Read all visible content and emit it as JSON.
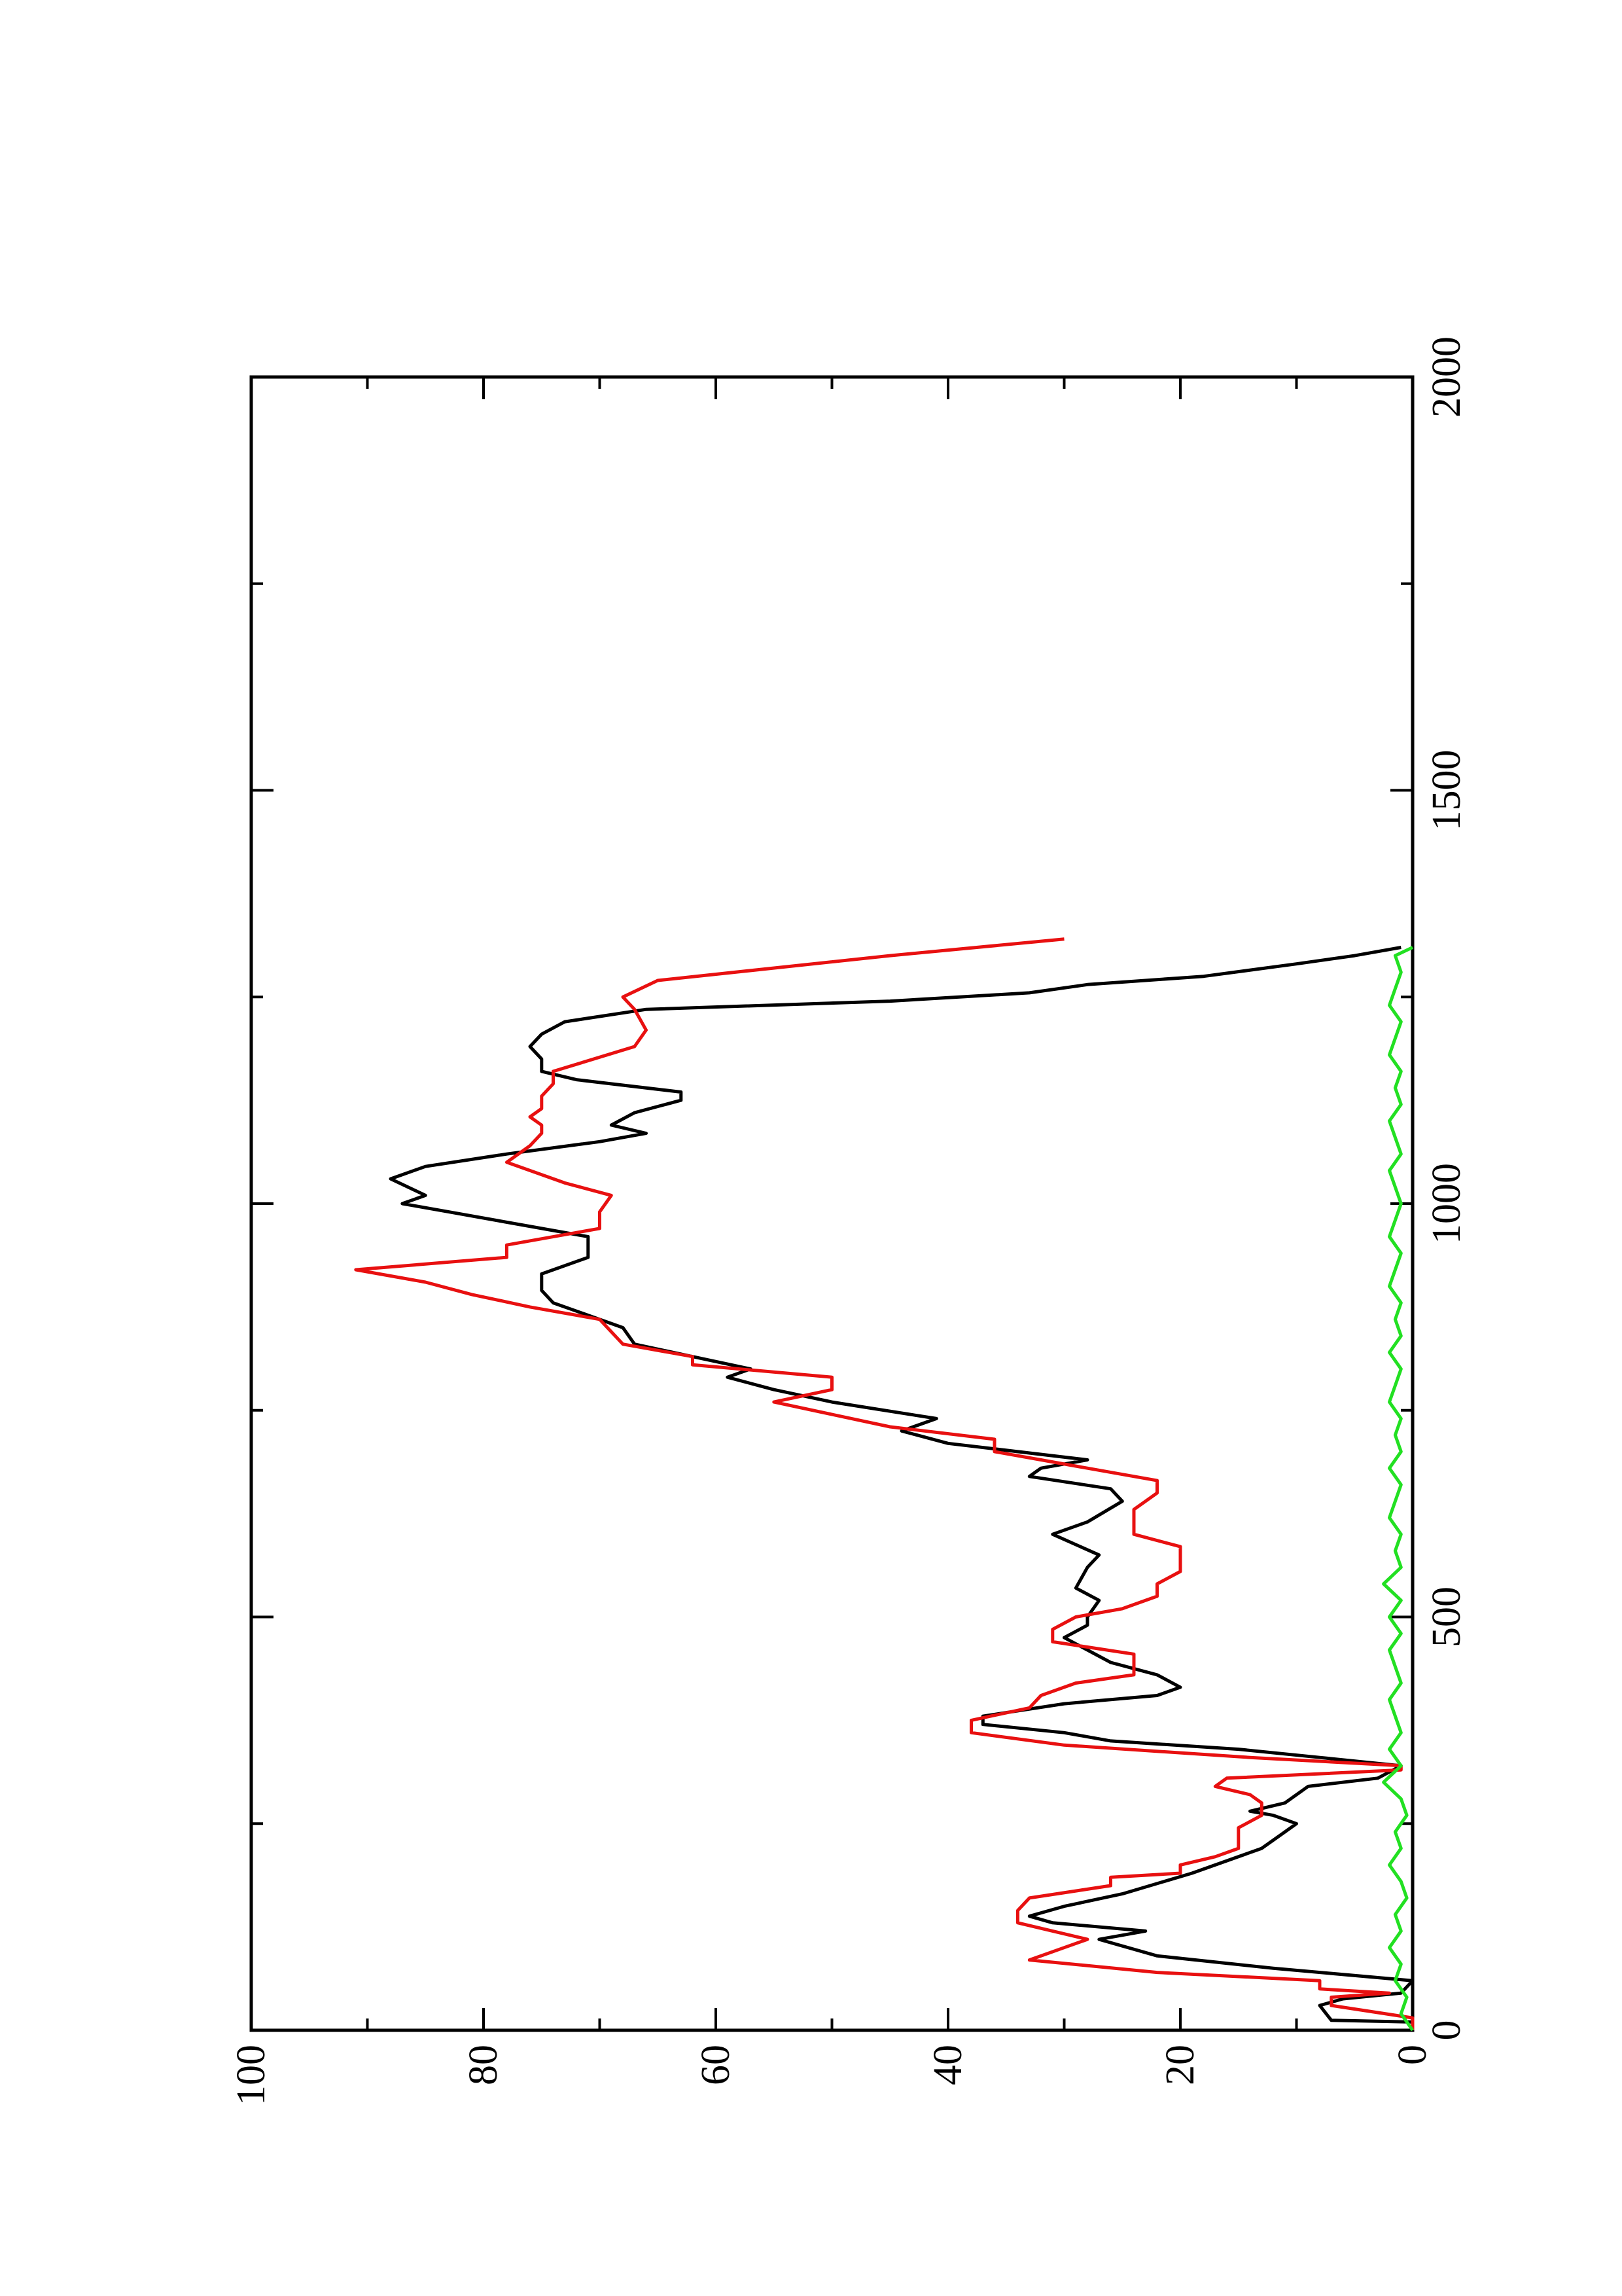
{
  "chart_data": {
    "type": "line",
    "title": "",
    "xlabel": "",
    "ylabel": "",
    "orientation": "rotated-90-ccw",
    "xlim": [
      0,
      2000
    ],
    "ylim": [
      0,
      100
    ],
    "x_ticks": [
      "0",
      "500",
      "1000",
      "1500",
      "2000"
    ],
    "y_ticks": [
      "0",
      "20",
      "40",
      "60",
      "80",
      "100"
    ],
    "grid": false,
    "legend": "none",
    "series": [
      {
        "color": "#000000",
        "x": [
          0,
          10,
          12,
          30,
          38,
          45,
          60,
          75,
          90,
          110,
          120,
          130,
          138,
          150,
          165,
          190,
          200,
          220,
          240,
          250,
          260,
          265,
          275,
          295,
          305,
          320,
          330,
          340,
          350,
          360,
          370,
          380,
          395,
          405,
          415,
          430,
          445,
          460,
          475,
          490,
          500,
          520,
          535,
          560,
          575,
          600,
          615,
          640,
          655,
          670,
          680,
          690,
          710,
          725,
          740,
          760,
          775,
          790,
          800,
          815,
          830,
          850,
          870,
          880,
          895,
          915,
          935,
          960,
          990,
          1000,
          1010,
          1030,
          1045,
          1060,
          1075,
          1085,
          1095,
          1110,
          1125,
          1135,
          1150,
          1160,
          1175,
          1190,
          1205,
          1220,
          1235,
          1245,
          1255,
          1265,
          1275,
          1290,
          1300,
          1310
        ],
        "y": [
          0,
          0,
          7,
          8,
          6,
          1,
          0,
          12,
          22,
          27,
          23,
          31,
          33,
          30,
          25,
          19,
          17,
          13,
          11,
          10,
          12,
          14,
          11,
          9,
          3,
          1,
          8,
          15,
          26,
          30,
          37,
          37,
          30,
          22,
          20,
          22,
          26,
          28,
          30,
          28,
          28,
          27,
          29,
          28,
          27,
          31,
          28,
          25,
          26,
          33,
          32,
          28,
          40,
          44,
          41,
          50,
          55,
          59,
          57,
          62,
          67,
          68,
          72,
          74,
          75,
          75,
          71,
          71,
          83,
          87,
          85,
          88,
          85,
          78,
          70,
          66,
          69,
          67,
          63,
          63,
          72,
          75,
          75,
          76,
          75,
          73,
          66,
          45,
          33,
          28,
          18,
          10,
          5,
          1
        ]
      },
      {
        "color": "#e81010",
        "x": [
          0,
          15,
          30,
          40,
          45,
          50,
          60,
          70,
          85,
          100,
          110,
          130,
          145,
          160,
          175,
          185,
          190,
          200,
          210,
          220,
          235,
          245,
          260,
          275,
          285,
          295,
          305,
          315,
          320,
          330,
          345,
          360,
          375,
          390,
          405,
          420,
          430,
          440,
          455,
          470,
          485,
          500,
          510,
          525,
          540,
          555,
          570,
          585,
          600,
          615,
          630,
          650,
          665,
          680,
          690,
          700,
          715,
          730,
          745,
          760,
          775,
          790,
          805,
          815,
          830,
          845,
          860,
          875,
          890,
          905,
          920,
          935,
          950,
          970,
          990,
          1010,
          1025,
          1050,
          1070,
          1085,
          1095,
          1105,
          1115,
          1130,
          1145,
          1160,
          1190,
          1210,
          1235,
          1250,
          1270,
          1300,
          1320
        ],
        "y": [
          0,
          0,
          7,
          7,
          2,
          8,
          8,
          22,
          33,
          30,
          28,
          34,
          34,
          33,
          26,
          26,
          20,
          20,
          17,
          15,
          15,
          15,
          13,
          13,
          14,
          17,
          16,
          1,
          1,
          14,
          30,
          38,
          38,
          33,
          32,
          29,
          24,
          24,
          24,
          31,
          31,
          29,
          25,
          22,
          22,
          20,
          20,
          20,
          24,
          24,
          24,
          22,
          22,
          28,
          32,
          36,
          36,
          45,
          50,
          55,
          50,
          50,
          62,
          62,
          68,
          69,
          70,
          76,
          81,
          85,
          91,
          78,
          78,
          70,
          70,
          69,
          73,
          78,
          76,
          75,
          75,
          76,
          75,
          75,
          74,
          74,
          67,
          66,
          67,
          68,
          65,
          45,
          30
        ]
      },
      {
        "color": "#22e022",
        "x": [
          0,
          20,
          40,
          60,
          80,
          100,
          120,
          140,
          160,
          180,
          200,
          220,
          240,
          260,
          280,
          300,
          320,
          340,
          360,
          380,
          400,
          420,
          440,
          460,
          480,
          500,
          520,
          540,
          560,
          580,
          600,
          620,
          640,
          660,
          680,
          700,
          720,
          740,
          760,
          780,
          800,
          820,
          840,
          860,
          880,
          900,
          920,
          940,
          960,
          980,
          1000,
          1020,
          1040,
          1060,
          1080,
          1100,
          1120,
          1140,
          1160,
          1180,
          1200,
          1220,
          1240,
          1260,
          1280,
          1300,
          1310
        ],
        "y": [
          0,
          1,
          0.5,
          1.5,
          1,
          2,
          1,
          1.5,
          0.5,
          1,
          2,
          1,
          1.5,
          0.5,
          1,
          2.5,
          1,
          2,
          1,
          1.5,
          2,
          1,
          1.5,
          2,
          1,
          2,
          1,
          2.5,
          1,
          1.5,
          1,
          2,
          1.5,
          1,
          2,
          1,
          1.5,
          1,
          2,
          1.5,
          1,
          2,
          1,
          1.5,
          1,
          2,
          1.5,
          1,
          2,
          1.5,
          1,
          1.5,
          2,
          1,
          1.5,
          2,
          1,
          1.5,
          1,
          2,
          1.5,
          1,
          2,
          1.5,
          1,
          1.5,
          0
        ]
      }
    ]
  }
}
